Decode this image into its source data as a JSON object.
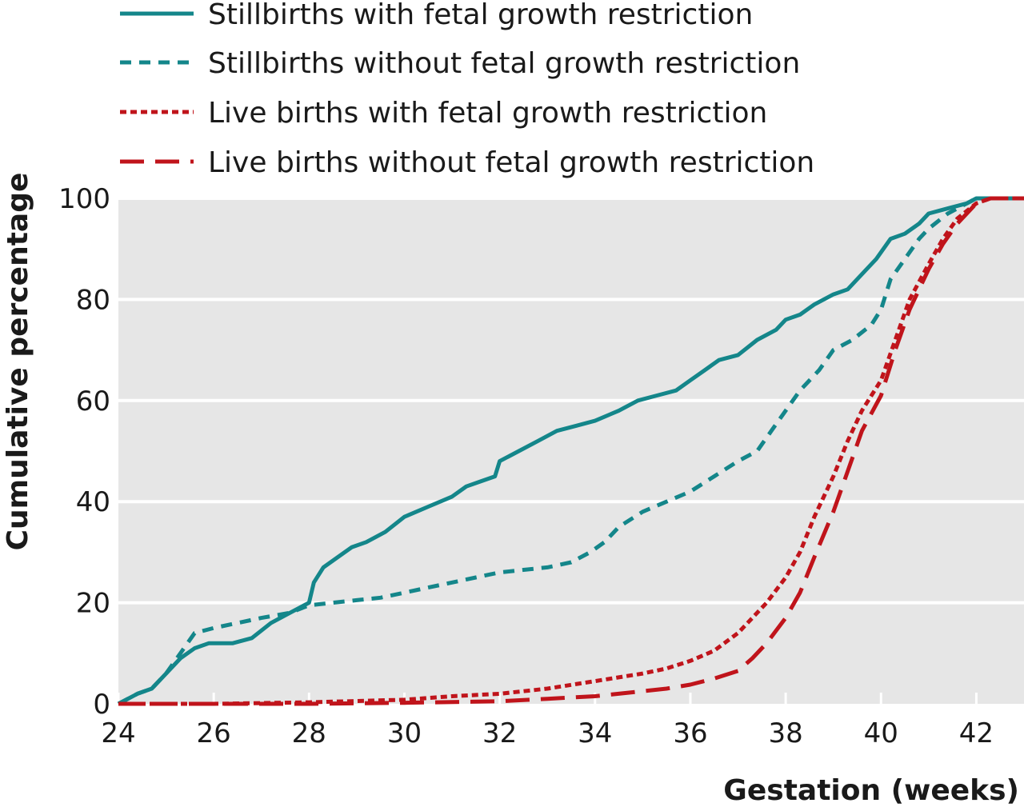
{
  "chart_data": {
    "type": "line",
    "xlabel": "Gestation (weeks)",
    "ylabel": "Cumulative percentage",
    "xlim": [
      24,
      43
    ],
    "ylim": [
      0,
      100
    ],
    "xticks": [
      24,
      26,
      28,
      30,
      32,
      34,
      36,
      38,
      40,
      42
    ],
    "yticks": [
      0,
      20,
      40,
      60,
      80,
      100
    ],
    "x_tick_labels": [
      "24",
      "26",
      "28",
      "30",
      "32",
      "34",
      "36",
      "38",
      "40",
      "42"
    ],
    "y_tick_labels": [
      "0",
      "20",
      "40",
      "60",
      "80",
      "100"
    ],
    "grid": "horizontal",
    "background": "#e6e6e6",
    "legend_position": "top",
    "series": [
      {
        "name": "Stillbirths with fetal growth restriction",
        "color": "#14868a",
        "style": "solid",
        "x": [
          24.0,
          24.4,
          24.7,
          25.0,
          25.3,
          25.6,
          25.9,
          26.4,
          26.8,
          27.2,
          27.6,
          28.0,
          28.1,
          28.3,
          28.6,
          28.9,
          29.2,
          29.6,
          30.0,
          30.5,
          31.0,
          31.3,
          31.6,
          31.9,
          32.0,
          32.4,
          32.8,
          33.2,
          33.6,
          34.0,
          34.5,
          34.9,
          35.3,
          35.7,
          36.0,
          36.3,
          36.6,
          37.0,
          37.4,
          37.8,
          38.0,
          38.3,
          38.6,
          39.0,
          39.3,
          39.6,
          39.9,
          40.2,
          40.5,
          40.8,
          41.0,
          41.4,
          41.8,
          42.0,
          43.0
        ],
        "values": [
          0,
          2,
          3,
          6,
          9,
          11,
          12,
          12,
          13,
          16,
          18,
          20,
          24,
          27,
          29,
          31,
          32,
          34,
          37,
          39,
          41,
          43,
          44,
          45,
          48,
          50,
          52,
          54,
          55,
          56,
          58,
          60,
          61,
          62,
          64,
          66,
          68,
          69,
          72,
          74,
          76,
          77,
          79,
          81,
          82,
          85,
          88,
          92,
          93,
          95,
          97,
          98,
          99,
          100,
          100
        ]
      },
      {
        "name": "Stillbirths without fetal growth restriction",
        "color": "#14868a",
        "style": "dashed",
        "x": [
          24.0,
          24.4,
          24.7,
          25.0,
          25.3,
          25.6,
          26.0,
          26.5,
          27.0,
          27.6,
          28.0,
          28.5,
          29.0,
          29.5,
          30.0,
          30.5,
          31.0,
          31.5,
          32.0,
          32.5,
          33.0,
          33.5,
          33.9,
          34.2,
          34.5,
          35.0,
          35.5,
          36.0,
          36.5,
          37.0,
          37.4,
          37.7,
          38.0,
          38.3,
          38.7,
          39.0,
          39.4,
          39.8,
          40.0,
          40.2,
          40.5,
          40.8,
          41.0,
          41.4,
          42.0,
          43.0
        ],
        "values": [
          0,
          2,
          3,
          6,
          10,
          14,
          15,
          16,
          17,
          18,
          19.5,
          20,
          20.5,
          21,
          22,
          23,
          24,
          25,
          26,
          26.5,
          27,
          28,
          30,
          32,
          35,
          38,
          40,
          42,
          45,
          48,
          50,
          54,
          58,
          62,
          66,
          70,
          72,
          75,
          78,
          84,
          88,
          92,
          94,
          97,
          100,
          100
        ]
      },
      {
        "name": "Live births with fetal growth restriction",
        "color": "#c0141b",
        "style": "dotted",
        "x": [
          24.0,
          26.0,
          28.0,
          30.0,
          31.0,
          32.0,
          33.0,
          34.0,
          35.0,
          35.5,
          36.0,
          36.5,
          37.0,
          37.3,
          37.6,
          38.0,
          38.3,
          38.6,
          39.0,
          39.3,
          39.6,
          40.0,
          40.3,
          40.6,
          41.0,
          41.3,
          41.6,
          42.0,
          42.3,
          43.0
        ],
        "values": [
          0,
          0,
          0.3,
          0.8,
          1.5,
          2,
          3,
          4.5,
          6,
          7,
          8.5,
          10.5,
          14,
          17,
          20,
          25,
          30,
          37,
          45,
          52,
          58,
          64,
          72,
          80,
          87,
          92,
          96,
          99,
          100,
          100
        ]
      },
      {
        "name": "Live births without fetal growth restriction",
        "color": "#c0141b",
        "style": "long-dashed",
        "x": [
          24.0,
          26.0,
          28.0,
          30.0,
          32.0,
          33.0,
          34.0,
          35.0,
          35.5,
          36.0,
          36.5,
          37.0,
          37.3,
          37.6,
          38.0,
          38.3,
          38.6,
          39.0,
          39.3,
          39.6,
          40.0,
          40.3,
          40.6,
          41.0,
          41.3,
          41.6,
          42.0,
          42.3,
          43.0
        ],
        "values": [
          0,
          0,
          0,
          0.2,
          0.5,
          1,
          1.5,
          2.5,
          3,
          3.8,
          5,
          6.5,
          9,
          12,
          17,
          22,
          29,
          38,
          46,
          54,
          61,
          70,
          78,
          86,
          91,
          95,
          99,
          100,
          100
        ]
      }
    ]
  }
}
